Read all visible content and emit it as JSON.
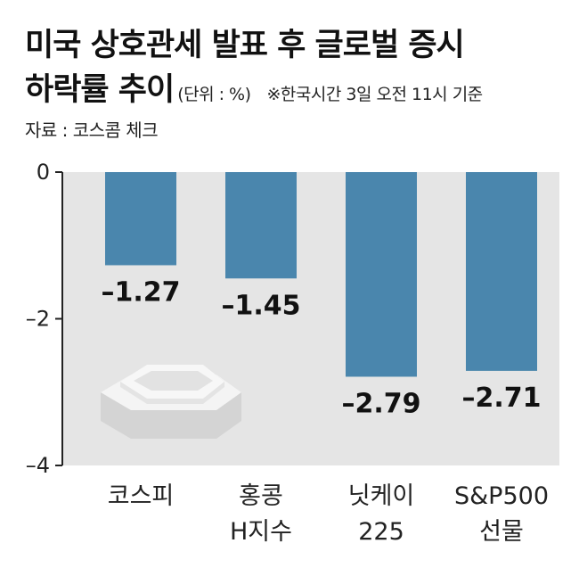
{
  "header": {
    "title_line1": "미국 상호관세 발표 후 글로벌 증시",
    "title_line2": "하락률 추이",
    "unit": "(단위 : %)",
    "note": "※한국시간 3일 오전 11시 기준",
    "source": "자료 : 코스콤 체크"
  },
  "chart_data": {
    "type": "bar",
    "categories": [
      [
        "코스피"
      ],
      [
        "홍콩",
        "H지수"
      ],
      [
        "닛케이",
        "225"
      ],
      [
        "S&P500",
        "선물"
      ]
    ],
    "values": [
      -1.27,
      -1.45,
      -2.79,
      -2.71
    ],
    "value_labels": [
      "–1.27",
      "–1.45",
      "–2.79",
      "–2.71"
    ],
    "y_ticks": [
      "0",
      "–2",
      "–4"
    ],
    "ylim": [
      -4,
      0
    ],
    "grid": false,
    "colors": {
      "bar": "#4a86ad",
      "plot_background": "#e5e5e5",
      "axis": "#222222"
    },
    "decoration": "octagon-podium-icon"
  }
}
